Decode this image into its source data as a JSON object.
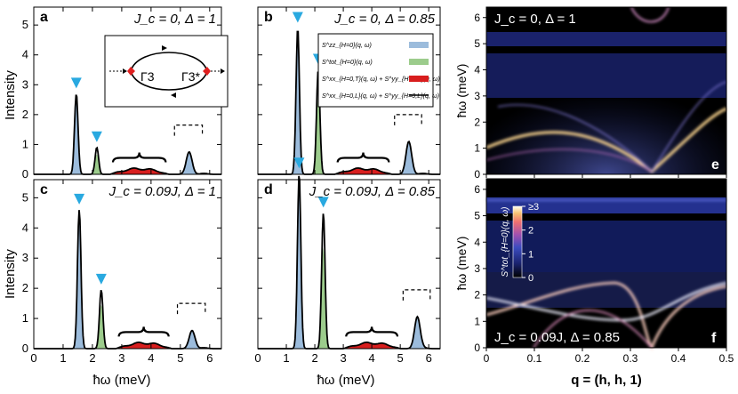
{
  "chart_data": [
    {
      "id": "a",
      "type": "line",
      "panel_label": "a",
      "annotation": "J_c = 0, Δ = 1",
      "xlim": [
        0,
        6.4
      ],
      "ylim": [
        0,
        5.6
      ],
      "peaks": [
        {
          "x": 1.45,
          "y": 2.7
        },
        {
          "x": 2.15,
          "y": 0.9
        },
        {
          "x": 5.3,
          "y": 0.75
        }
      ],
      "continuum": [
        2.6,
        4.6
      ],
      "green_peak": 2.15
    },
    {
      "id": "b",
      "type": "line",
      "panel_label": "b",
      "annotation": "J_c = 0, Δ = 0.85",
      "xlim": [
        0,
        6.4
      ],
      "ylim": [
        0,
        5.6
      ],
      "peaks": [
        {
          "x": 1.4,
          "y": 4.9
        },
        {
          "x": 2.12,
          "y": 3.5
        },
        {
          "x": 5.3,
          "y": 1.1
        }
      ],
      "continuum": [
        2.7,
        4.7
      ],
      "green_peak": 2.12
    },
    {
      "id": "c",
      "type": "line",
      "panel_label": "c",
      "annotation": "J_c = 0.09J, Δ = 1",
      "xlim": [
        0,
        6.4
      ],
      "ylim": [
        0,
        5.6
      ],
      "peaks": [
        {
          "x": 1.55,
          "y": 4.6
        },
        {
          "x": 2.3,
          "y": 1.95
        },
        {
          "x": 5.4,
          "y": 0.6
        }
      ],
      "continuum": [
        2.8,
        4.7
      ],
      "green_peak": 2.3
    },
    {
      "id": "d",
      "type": "line",
      "panel_label": "d",
      "annotation": "J_c = 0.09J, Δ = 0.85",
      "xlim": [
        0,
        6.4
      ],
      "ylim": [
        0,
        5.6
      ],
      "peaks": [
        {
          "x": 1.45,
          "y": 5.8
        },
        {
          "x": 2.3,
          "y": 4.5
        },
        {
          "x": 5.6,
          "y": 1.05
        }
      ],
      "continuum": [
        3.0,
        5.0
      ],
      "green_peak": 2.3
    }
  ],
  "axes": {
    "ylabel": "Intensity",
    "xlabel": "ħω (meV)",
    "xticks": [
      "0",
      "1",
      "2",
      "3",
      "4",
      "5",
      "6"
    ],
    "yticks": [
      "0",
      "1",
      "2",
      "3",
      "4",
      "5"
    ],
    "q_xlabel": "q = (h, h, 1)",
    "q_xticks": [
      "0",
      "0.1",
      "0.2",
      "0.3",
      "0.4",
      "0.5"
    ],
    "w_ylabel": "ħω (meV)",
    "w_yticks": [
      "0",
      "1",
      "2",
      "3",
      "4",
      "5",
      "6"
    ]
  },
  "maps": [
    {
      "id": "e",
      "panel_label": "e",
      "annotation": "J_c = 0, Δ = 1"
    },
    {
      "id": "f",
      "panel_label": "f",
      "annotation": "J_c = 0.09J, Δ = 0.85"
    }
  ],
  "colorbar": {
    "ticks": [
      "0",
      "1",
      "2",
      "≥3"
    ],
    "label": "S^tot_{H=0}(q, ω)"
  },
  "inset": {
    "left_label": "Γ3",
    "right_label": "Γ3*"
  },
  "legend": [
    {
      "label": "S^zz_{H=0}(q, ω)",
      "color": "#9cbcdc"
    },
    {
      "label": "S^tot_{H=0}(q, ω)",
      "color": "#9ccc8c"
    },
    {
      "label": "S^xx_{H=0,T}(q, ω) + S^yy_{H=0,T}(q, ω)",
      "color": "#d81e1e"
    },
    {
      "label": "S^xx_{H=0,L}(q, ω) + S^yy_{H=0,L}(q, ω)",
      "color": "#000000"
    }
  ],
  "colors": {
    "blue_fill": "#9cbcdc",
    "green_fill": "#9ccc8c",
    "red_fill": "#d81e1e",
    "marker": "#29a9e0"
  }
}
